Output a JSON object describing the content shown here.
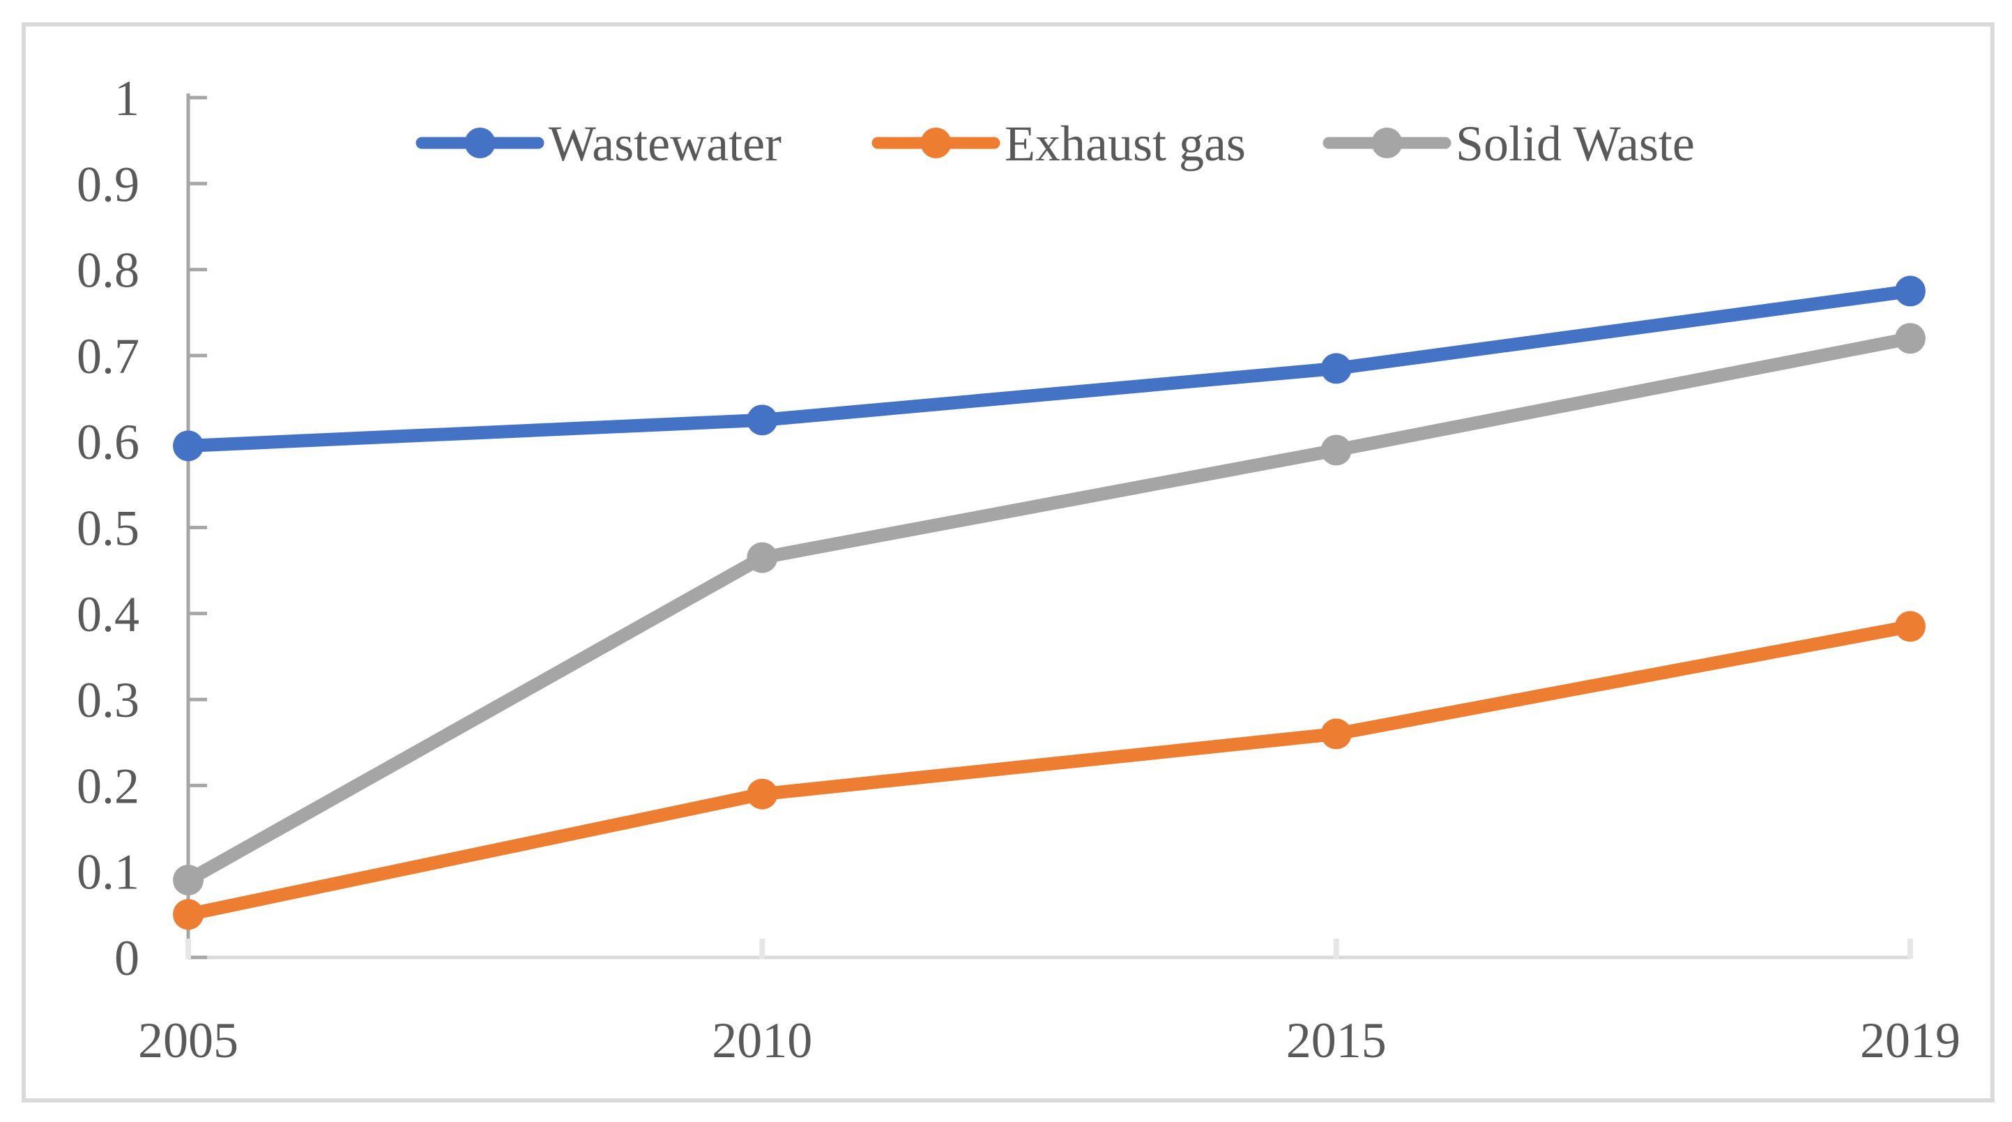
{
  "chart_data": {
    "type": "line",
    "title": "",
    "xlabel": "",
    "ylabel": "",
    "categories": [
      "2005",
      "2010",
      "2015",
      "2019"
    ],
    "series": [
      {
        "name": "Wastewater",
        "color": "#4472C4",
        "values": [
          0.595,
          0.625,
          0.685,
          0.775
        ]
      },
      {
        "name": "Exhaust gas",
        "color": "#ED7D31",
        "values": [
          0.05,
          0.19,
          0.26,
          0.385
        ]
      },
      {
        "name": "Solid Waste",
        "color": "#A5A5A5",
        "values": [
          0.09,
          0.465,
          0.59,
          0.72
        ]
      }
    ],
    "y_ticks": [
      "0",
      "0.1",
      "0.2",
      "0.3",
      "0.4",
      "0.5",
      "0.6",
      "0.7",
      "0.8",
      "0.9",
      "1"
    ],
    "ylim": [
      0,
      1
    ],
    "grid": "off",
    "legend_position": "top",
    "marker": "circle",
    "axis_text_color": "#595959",
    "y_axis_color": "#A6A6A6",
    "x_axis_color": "#D9D9D9",
    "figure_border_color": "#D9D9D9"
  }
}
